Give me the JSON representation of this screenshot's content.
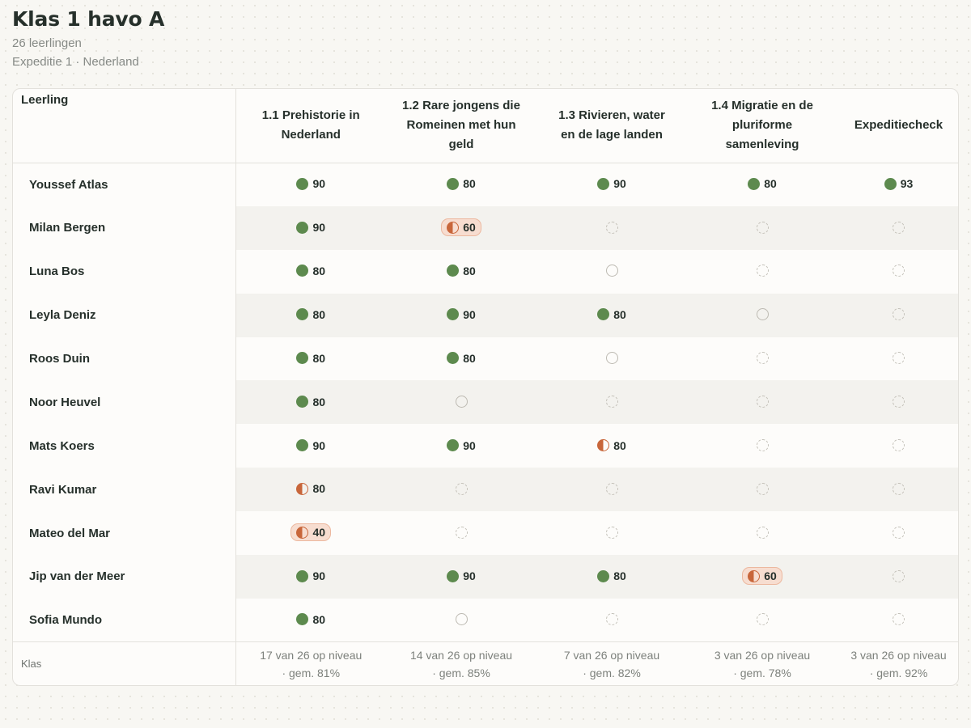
{
  "class": {
    "title": "Klas 1 havo A",
    "students_label": "26 leerlingen",
    "expedition": "Expeditie 1 · Nederland"
  },
  "table": {
    "student_header": "Leerling",
    "columns": [
      "1.1 Prehistorie in Nederland",
      "1.2 Rare jongens die Romeinen met hun geld",
      "1.3 Rivieren, water en de lage landen",
      "1.4 Migratie en de pluriforme samenleving",
      "Expeditiecheck"
    ],
    "status_legend": {
      "full": "circle-filled-icon",
      "half": "circle-half-icon",
      "empty": "circle-outline-icon",
      "pending": "circle-dashed-icon"
    },
    "colors": {
      "on_level": "#5d8a4e",
      "below_level": "#c8663a",
      "warning_bg": "#f7ddd0"
    },
    "rows": [
      {
        "name": "Youssef Atlas",
        "cells": [
          {
            "status": "full",
            "score": "90"
          },
          {
            "status": "full",
            "score": "80"
          },
          {
            "status": "full",
            "score": "90"
          },
          {
            "status": "full",
            "score": "80"
          },
          {
            "status": "full",
            "score": "93"
          }
        ]
      },
      {
        "name": "Milan Bergen",
        "cells": [
          {
            "status": "full",
            "score": "90"
          },
          {
            "status": "half",
            "score": "60",
            "warn": true
          },
          {
            "status": "pending"
          },
          {
            "status": "pending"
          },
          {
            "status": "pending"
          }
        ]
      },
      {
        "name": "Luna Bos",
        "cells": [
          {
            "status": "full",
            "score": "80"
          },
          {
            "status": "full",
            "score": "80"
          },
          {
            "status": "empty"
          },
          {
            "status": "pending"
          },
          {
            "status": "pending"
          }
        ]
      },
      {
        "name": "Leyla Deniz",
        "cells": [
          {
            "status": "full",
            "score": "80"
          },
          {
            "status": "full",
            "score": "90"
          },
          {
            "status": "full",
            "score": "80"
          },
          {
            "status": "empty"
          },
          {
            "status": "pending"
          }
        ]
      },
      {
        "name": "Roos Duin",
        "cells": [
          {
            "status": "full",
            "score": "80"
          },
          {
            "status": "full",
            "score": "80"
          },
          {
            "status": "empty"
          },
          {
            "status": "pending"
          },
          {
            "status": "pending"
          }
        ]
      },
      {
        "name": "Noor Heuvel",
        "cells": [
          {
            "status": "full",
            "score": "80"
          },
          {
            "status": "empty"
          },
          {
            "status": "pending"
          },
          {
            "status": "pending"
          },
          {
            "status": "pending"
          }
        ]
      },
      {
        "name": "Mats Koers",
        "cells": [
          {
            "status": "full",
            "score": "90"
          },
          {
            "status": "full",
            "score": "90"
          },
          {
            "status": "half",
            "score": "80"
          },
          {
            "status": "pending"
          },
          {
            "status": "pending"
          }
        ]
      },
      {
        "name": "Ravi Kumar",
        "cells": [
          {
            "status": "half",
            "score": "80"
          },
          {
            "status": "pending"
          },
          {
            "status": "pending"
          },
          {
            "status": "pending"
          },
          {
            "status": "pending"
          }
        ]
      },
      {
        "name": "Mateo del Mar",
        "cells": [
          {
            "status": "half",
            "score": "40",
            "warn": true
          },
          {
            "status": "pending"
          },
          {
            "status": "pending"
          },
          {
            "status": "pending"
          },
          {
            "status": "pending"
          }
        ]
      },
      {
        "name": "Jip van der Meer",
        "cells": [
          {
            "status": "full",
            "score": "90"
          },
          {
            "status": "full",
            "score": "90"
          },
          {
            "status": "full",
            "score": "80"
          },
          {
            "status": "half",
            "score": "60",
            "warn": true
          },
          {
            "status": "pending"
          }
        ]
      },
      {
        "name": "Sofia Mundo",
        "cells": [
          {
            "status": "full",
            "score": "80"
          },
          {
            "status": "empty"
          },
          {
            "status": "pending"
          },
          {
            "status": "pending"
          },
          {
            "status": "pending"
          }
        ]
      }
    ],
    "footer": {
      "label": "Klas",
      "summaries": [
        {
          "level": "17 van 26 op niveau",
          "avg": "· gem. 81%"
        },
        {
          "level": "14 van 26 op niveau",
          "avg": "· gem. 85%"
        },
        {
          "level": "7 van 26 op niveau",
          "avg": "· gem. 82%"
        },
        {
          "level": "3 van 26 op niveau",
          "avg": "· gem. 78%"
        },
        {
          "level": "3 van 26 op niveau",
          "avg": "· gem. 92%"
        }
      ]
    }
  }
}
